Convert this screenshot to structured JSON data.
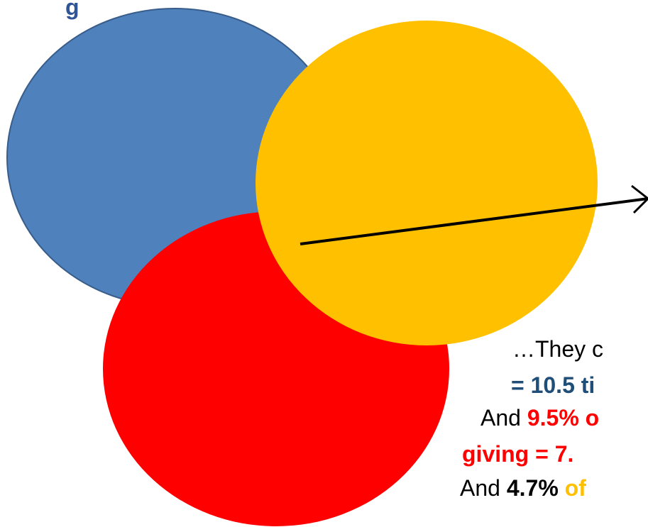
{
  "colors": {
    "circle_blue": "#4F81BD",
    "circle_blue_stroke": "#385D8A",
    "circle_yellow": "#FFC000",
    "circle_red": "#FF0000",
    "text_blue": "#1F4E79",
    "text_red": "#FF0000",
    "text_orange": "#FFC000"
  },
  "top_fragment": "g",
  "lines": {
    "line1": "…They c",
    "line2": "= 10.5 ti",
    "line3_a": "And ",
    "line3_b": "9.5% o",
    "line4": "giving = 7.",
    "line5_a": "And ",
    "line5_b": "4.7% ",
    "line5_c": "of"
  }
}
